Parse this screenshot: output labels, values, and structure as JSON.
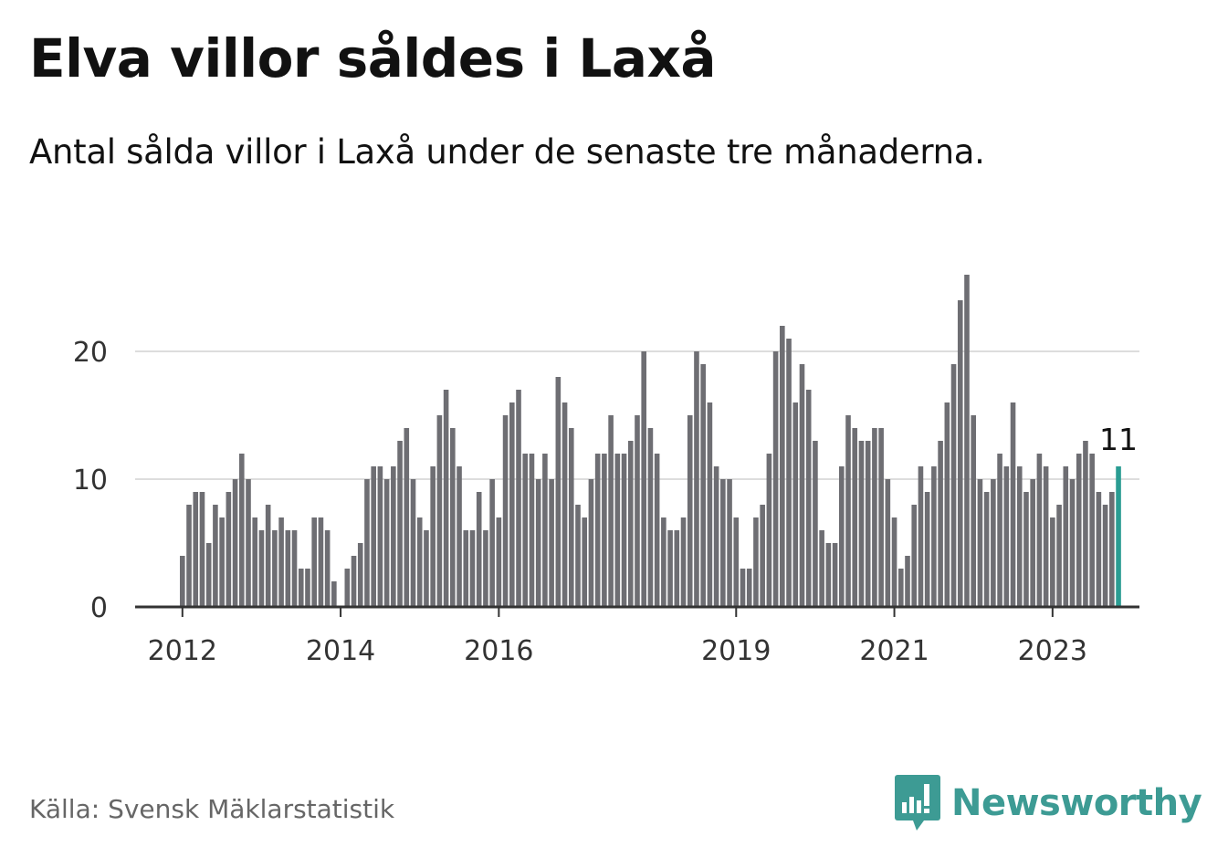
{
  "header": {
    "title": "Elva villor såldes i Laxå",
    "subtitle": "Antal sålda villor i Laxå under de senaste tre månaderna."
  },
  "footer": {
    "source": "Källa: Svensk Mäklarstatistik",
    "brand": "Newsworthy"
  },
  "colors": {
    "bar": "#6e6e73",
    "highlight": "#2a9d93",
    "grid": "#dddddd",
    "axis": "#333333",
    "brand": "#3d9b94"
  },
  "chart_data": {
    "type": "bar",
    "ylim": [
      0,
      26
    ],
    "yticks": [
      0,
      10,
      20
    ],
    "xticks": [
      "2012",
      "2014",
      "2016",
      "2019",
      "2021",
      "2023"
    ],
    "grid": true,
    "highlight_label": "11",
    "series": [
      {
        "values": [
          4,
          8,
          9,
          9,
          5,
          8,
          7,
          9,
          10,
          12,
          10,
          7,
          6,
          8,
          6,
          7,
          6,
          6,
          3,
          3,
          7,
          7,
          6,
          2,
          0,
          3,
          4,
          5,
          10,
          11,
          11,
          10,
          11,
          13,
          14,
          10,
          7,
          6,
          11,
          15,
          17,
          14,
          11,
          6,
          6,
          9,
          6,
          10,
          7,
          15,
          16,
          17,
          12,
          12,
          10,
          12,
          10,
          18,
          16,
          14,
          8,
          7,
          10,
          12,
          12,
          15,
          12,
          12,
          13,
          15,
          20,
          14,
          12,
          7,
          6,
          6,
          7,
          15,
          20,
          19,
          16,
          11,
          10,
          10,
          7,
          3,
          3,
          7,
          8,
          12,
          20,
          22,
          21,
          16,
          19,
          17,
          13,
          6,
          5,
          5,
          11,
          15,
          14,
          13,
          13,
          14,
          14,
          10,
          7,
          3,
          4,
          8,
          11,
          9,
          11,
          13,
          16,
          19,
          24,
          26,
          15,
          10,
          9,
          10,
          12,
          11,
          16,
          11,
          9,
          10,
          12,
          11,
          7,
          8,
          11,
          10,
          12,
          13,
          12,
          9,
          8,
          9,
          11
        ]
      }
    ]
  }
}
